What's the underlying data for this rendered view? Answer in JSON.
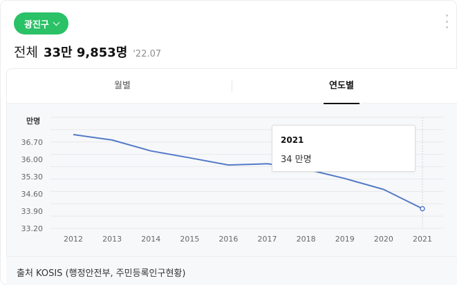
{
  "header": {
    "region_label": "광진구",
    "total_label": "전체",
    "total_value": "33만 9,853명",
    "date": "'22.07"
  },
  "tabs": [
    {
      "label": "월별",
      "active": false
    },
    {
      "label": "연도별",
      "active": true
    }
  ],
  "tooltip": {
    "year": "2021",
    "value": "34 만명"
  },
  "source": "출처 KOSIS (행정안전부, 주민등록인구현황)",
  "colors": {
    "accent": "#2ac167",
    "line": "#5279c7"
  },
  "chart_data": {
    "type": "line",
    "title": "",
    "xlabel": "",
    "ylabel": "만명",
    "categories": [
      "2012",
      "2013",
      "2014",
      "2015",
      "2016",
      "2017",
      "2018",
      "2019",
      "2020",
      "2021"
    ],
    "yticks": [
      "33.20",
      "33.90",
      "34.60",
      "35.30",
      "36.00",
      "36.70"
    ],
    "ylim": [
      33.2,
      37.7
    ],
    "grid": true,
    "series": [
      {
        "values": [
          37.0,
          36.78,
          36.34,
          36.06,
          35.77,
          35.82,
          35.6,
          35.22,
          34.78,
          34.0
        ]
      }
    ],
    "highlight": "2021"
  }
}
